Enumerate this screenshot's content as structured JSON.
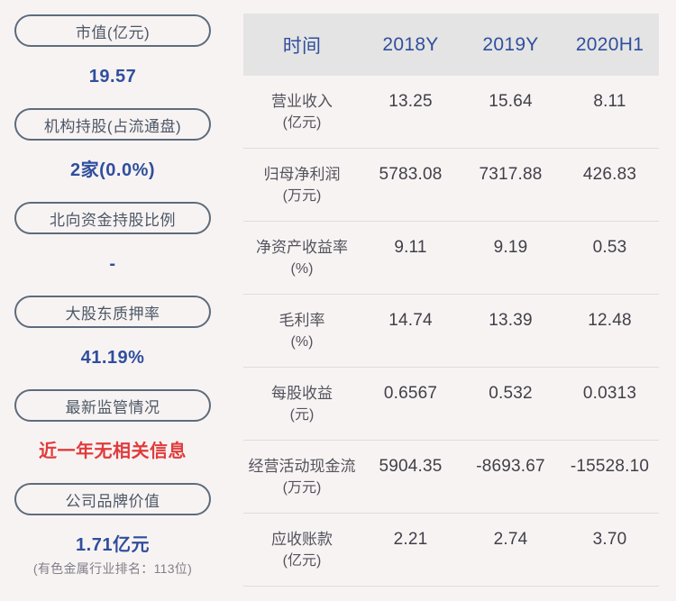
{
  "theme": {
    "background": "#f8f3f3",
    "pill_border": "#5d6c7b",
    "accent_blue": "#2f4f9d",
    "alert_red": "#e03b3b",
    "header_bg": "#e5e4e4",
    "text_dark": "#404048",
    "subtext_gray": "#7f7f88"
  },
  "sidebar": {
    "items": [
      {
        "label": "市值(亿元)",
        "value": "19.57",
        "value_color": "#2f4f9d",
        "subtext": ""
      },
      {
        "label": "机构持股(占流通盘)",
        "value": "2家(0.0%)",
        "value_color": "#2f4f9d",
        "subtext": ""
      },
      {
        "label": "北向资金持股比例",
        "value": "-",
        "value_color": "#2f4f9d",
        "subtext": ""
      },
      {
        "label": "大股东质押率",
        "value": "41.19%",
        "value_color": "#2f4f9d",
        "subtext": ""
      },
      {
        "label": "最新监管情况",
        "value": "近一年无相关信息",
        "value_color": "#e03b3b",
        "subtext": ""
      },
      {
        "label": "公司品牌价值",
        "value": "1.71亿元",
        "value_color": "#2f4f9d",
        "subtext": "(有色金属行业排名：113位)"
      }
    ]
  },
  "chart_data": {
    "type": "table",
    "columns": [
      "时间",
      "2018Y",
      "2019Y",
      "2020H1"
    ],
    "rows": [
      {
        "metric": "营业收入",
        "unit": "(亿元)",
        "values": [
          "13.25",
          "15.64",
          "8.11"
        ]
      },
      {
        "metric": "归母净利润",
        "unit": "(万元)",
        "values": [
          "5783.08",
          "7317.88",
          "426.83"
        ]
      },
      {
        "metric": "净资产收益率",
        "unit": "(%)",
        "values": [
          "9.11",
          "9.19",
          "0.53"
        ]
      },
      {
        "metric": "毛利率",
        "unit": "(%)",
        "values": [
          "14.74",
          "13.39",
          "12.48"
        ]
      },
      {
        "metric": "每股收益",
        "unit": "(元)",
        "values": [
          "0.6567",
          "0.532",
          "0.0313"
        ]
      },
      {
        "metric": "经营活动现金流",
        "unit": "(万元)",
        "values": [
          "5904.35",
          "-8693.67",
          "-15528.10"
        ]
      },
      {
        "metric": "应收账款",
        "unit": "(亿元)",
        "values": [
          "2.21",
          "2.74",
          "3.70"
        ]
      }
    ]
  }
}
